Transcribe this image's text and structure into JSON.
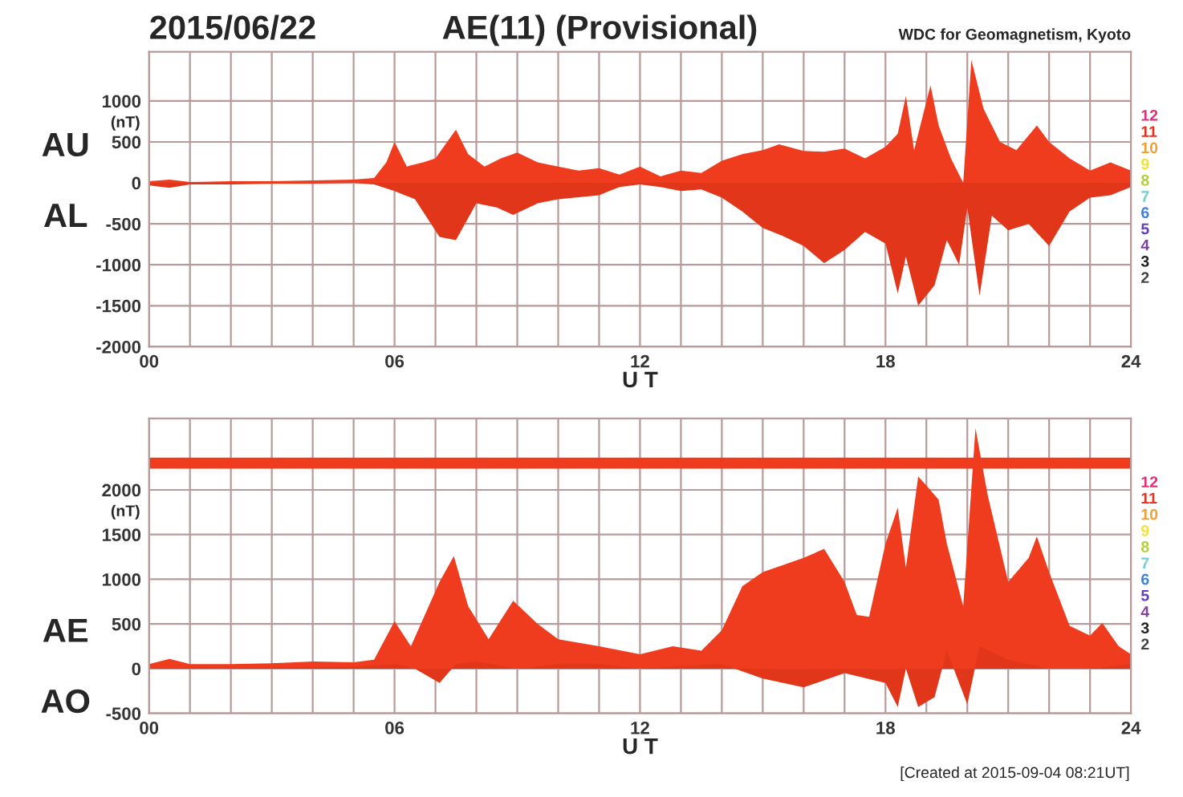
{
  "chart_data": [
    {
      "type": "area",
      "title": "AE(11) (Provisional)",
      "xlabel": "U T",
      "ylabel": "(nT)",
      "annotations": [
        "2015/06/22",
        "WDC for Geomagnetism, Kyoto",
        "12",
        "11",
        "10",
        "9",
        "8",
        "7",
        "6",
        "5",
        "4",
        "3",
        "2"
      ],
      "xlim": [
        0,
        24
      ],
      "ylim": [
        -2000,
        1600
      ],
      "xticks": [
        {
          "value": 0,
          "label": "00"
        },
        {
          "value": 1,
          "label": null
        },
        {
          "value": 2,
          "label": null
        },
        {
          "value": 3,
          "label": null
        },
        {
          "value": 4,
          "label": null
        },
        {
          "value": 5,
          "label": null
        },
        {
          "value": 6,
          "label": "06"
        },
        {
          "value": 7,
          "label": null
        },
        {
          "value": 8,
          "label": null
        },
        {
          "value": 9,
          "label": null
        },
        {
          "value": 10,
          "label": null
        },
        {
          "value": 11,
          "label": null
        },
        {
          "value": 12,
          "label": "12"
        },
        {
          "value": 13,
          "label": null
        },
        {
          "value": 14,
          "label": null
        },
        {
          "value": 15,
          "label": null
        },
        {
          "value": 16,
          "label": null
        },
        {
          "value": 17,
          "label": null
        },
        {
          "value": 18,
          "label": "18"
        },
        {
          "value": 19,
          "label": null
        },
        {
          "value": 20,
          "label": null
        },
        {
          "value": 21,
          "label": null
        },
        {
          "value": 22,
          "label": null
        },
        {
          "value": 23,
          "label": null
        },
        {
          "value": 24,
          "label": "24"
        }
      ],
      "yticks": [
        -2000,
        -1500,
        -1000,
        -500,
        0,
        500,
        1000
      ],
      "grid": true,
      "legend": false,
      "series": [
        {
          "name": "AU",
          "color": "#f03c1e",
          "x": [
            0,
            0.5,
            1,
            2,
            3,
            4,
            5,
            5.5,
            5.8,
            6.0,
            6.3,
            6.7,
            7.0,
            7.5,
            7.8,
            8.2,
            8.6,
            9.0,
            9.5,
            10,
            10.5,
            11,
            11.5,
            12,
            12.5,
            13,
            13.5,
            14,
            14.5,
            15,
            15.4,
            16,
            16.5,
            17,
            17.5,
            18,
            18.3,
            18.5,
            18.7,
            19.1,
            19.3,
            19.6,
            19.9,
            20.1,
            20.4,
            20.8,
            21.2,
            21.7,
            22,
            22.5,
            23,
            23.5,
            24
          ],
          "values": [
            20,
            40,
            10,
            20,
            20,
            30,
            40,
            60,
            250,
            500,
            200,
            250,
            300,
            650,
            350,
            200,
            300,
            370,
            250,
            200,
            150,
            180,
            100,
            200,
            80,
            150,
            120,
            270,
            350,
            400,
            470,
            390,
            380,
            420,
            300,
            440,
            600,
            1060,
            400,
            1190,
            700,
            300,
            0,
            1500,
            900,
            500,
            400,
            700,
            500,
            300,
            150,
            250,
            150
          ]
        },
        {
          "name": "AL",
          "color": "#e2361a",
          "x": [
            0,
            0.5,
            1,
            2,
            3,
            4,
            5,
            5.5,
            6,
            6.5,
            7.1,
            7.5,
            8,
            8.5,
            8.9,
            9.5,
            10,
            11,
            11.5,
            12,
            12.5,
            13,
            13.5,
            14,
            14.5,
            15,
            15.5,
            16,
            16.5,
            17,
            17.5,
            18,
            18.3,
            18.5,
            18.8,
            19.2,
            19.5,
            19.8,
            20.0,
            20.3,
            20.6,
            21,
            21.5,
            22,
            22.5,
            23,
            23.5,
            24
          ],
          "values": [
            -30,
            -60,
            -20,
            -20,
            -10,
            -10,
            0,
            -20,
            -100,
            -200,
            -660,
            -700,
            -250,
            -300,
            -390,
            -250,
            -200,
            -150,
            -50,
            -20,
            -50,
            -100,
            -80,
            -180,
            -350,
            -550,
            -650,
            -770,
            -980,
            -820,
            -600,
            -740,
            -1350,
            -900,
            -1500,
            -1250,
            -700,
            -1000,
            -300,
            -1380,
            -400,
            -580,
            -500,
            -770,
            -350,
            -180,
            -150,
            -50
          ]
        }
      ]
    },
    {
      "type": "area",
      "xlabel": "U T",
      "ylabel": "(nT)",
      "annotations": [
        "12",
        "11",
        "10",
        "9",
        "8",
        "7",
        "6",
        "5",
        "4",
        "3",
        "2",
        "[Created at 2015-09-04 08:21UT]"
      ],
      "xlim": [
        0,
        24
      ],
      "ylim": [
        -500,
        2800
      ],
      "xticks": [
        {
          "value": 0,
          "label": "00"
        },
        {
          "value": 1,
          "label": null
        },
        {
          "value": 2,
          "label": null
        },
        {
          "value": 3,
          "label": null
        },
        {
          "value": 4,
          "label": null
        },
        {
          "value": 5,
          "label": null
        },
        {
          "value": 6,
          "label": "06"
        },
        {
          "value": 7,
          "label": null
        },
        {
          "value": 8,
          "label": null
        },
        {
          "value": 9,
          "label": null
        },
        {
          "value": 10,
          "label": null
        },
        {
          "value": 11,
          "label": null
        },
        {
          "value": 12,
          "label": "12"
        },
        {
          "value": 13,
          "label": null
        },
        {
          "value": 14,
          "label": null
        },
        {
          "value": 15,
          "label": null
        },
        {
          "value": 16,
          "label": null
        },
        {
          "value": 17,
          "label": null
        },
        {
          "value": 18,
          "label": "18"
        },
        {
          "value": 19,
          "label": null
        },
        {
          "value": 20,
          "label": null
        },
        {
          "value": 21,
          "label": null
        },
        {
          "value": 22,
          "label": null
        },
        {
          "value": 23,
          "label": null
        },
        {
          "value": 24,
          "label": "24"
        }
      ],
      "yticks": [
        -500,
        0,
        500,
        1000,
        1500,
        2000
      ],
      "grid": true,
      "legend": false,
      "ref_lines": [
        {
          "axis": "y",
          "value": 2300,
          "color": "#f03c1e"
        }
      ],
      "series": [
        {
          "name": "AE",
          "color": "#f03c1e",
          "x": [
            0,
            0.5,
            1,
            2,
            3,
            4,
            5,
            5.5,
            6,
            6.4,
            7.1,
            7.45,
            7.8,
            8.3,
            8.9,
            9.5,
            10,
            11,
            12,
            12.8,
            13.5,
            14,
            14.5,
            15,
            16,
            16.5,
            17,
            17.3,
            17.6,
            18,
            18.3,
            18.5,
            18.8,
            19,
            19.3,
            19.5,
            19.9,
            20.2,
            20.5,
            21,
            21.5,
            21.7,
            22,
            22.5,
            23,
            23.3,
            23.7,
            24
          ],
          "values": [
            50,
            110,
            50,
            50,
            60,
            80,
            70,
            100,
            530,
            250,
            970,
            1260,
            700,
            330,
            760,
            500,
            330,
            250,
            160,
            250,
            200,
            430,
            920,
            1080,
            1240,
            1340,
            970,
            600,
            580,
            1400,
            1800,
            1130,
            2150,
            2050,
            1890,
            1400,
            700,
            2690,
            1940,
            970,
            1240,
            1480,
            1080,
            480,
            370,
            510,
            250,
            160
          ]
        },
        {
          "name": "AO",
          "color": "#e2361a",
          "x": [
            0,
            1,
            3,
            5,
            6,
            6.5,
            7.1,
            7.5,
            8,
            9,
            10,
            11,
            12,
            13,
            14,
            15,
            16,
            17,
            18,
            18.3,
            18.5,
            18.8,
            19.2,
            19.5,
            20,
            20.3,
            21,
            22,
            23,
            24
          ],
          "values": [
            0,
            10,
            10,
            20,
            50,
            0,
            -160,
            50,
            80,
            0,
            50,
            50,
            0,
            30,
            50,
            -110,
            -210,
            -50,
            -160,
            -430,
            0,
            -430,
            -320,
            200,
            -400,
            250,
            100,
            0,
            0,
            50
          ]
        }
      ]
    }
  ]
}
